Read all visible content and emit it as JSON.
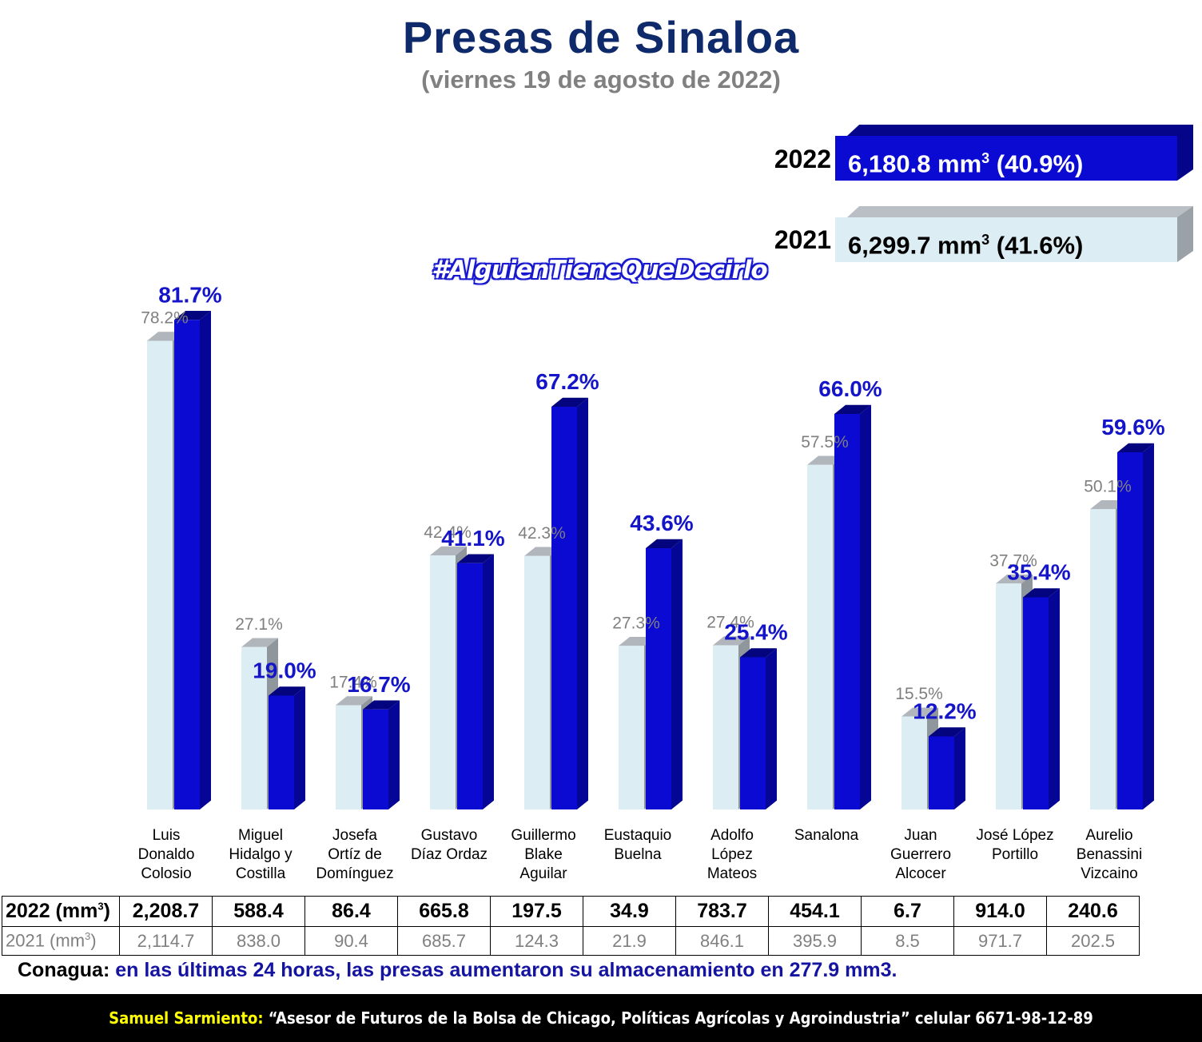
{
  "title": "Presas de Sinaloa",
  "subtitle": "(viernes 19 de agosto de 2022)",
  "hashtag": "#AlguienTieneQueDecirlo",
  "totals": {
    "y2022": {
      "label": "2022",
      "value": "6,180.8 mm",
      "exp": "3",
      "pct": " (40.9%)"
    },
    "y2021": {
      "label": "2021",
      "value": "6,299.7 mm",
      "exp": "3",
      "pct": " (41.6%)"
    }
  },
  "colors": {
    "series_2022": "#0a0ad2",
    "series_2021": "#dcedf4",
    "label_2022": "#1414c8",
    "label_2021": "#7f7f7f"
  },
  "chart_data": {
    "type": "bar",
    "categories": [
      [
        "Luis",
        "Donaldo",
        "Colosio"
      ],
      [
        "Miguel",
        "Hidalgo y",
        "Costilla"
      ],
      [
        "Josefa",
        "Ortíz de",
        "Domínguez"
      ],
      [
        "Gustavo",
        "Díaz Ordaz"
      ],
      [
        "Guillermo",
        "Blake",
        "Aguilar"
      ],
      [
        "Eustaquio",
        "Buelna"
      ],
      [
        "Adolfo",
        "López",
        "Mateos"
      ],
      [
        "Sanalona"
      ],
      [
        "Juan",
        "Guerrero",
        "Alcocer"
      ],
      [
        "José López",
        "Portillo"
      ],
      [
        "Aurelio",
        "Benassini",
        "Vizcaino"
      ]
    ],
    "series": [
      {
        "values": [
          78.2,
          27.1,
          17.4,
          42.4,
          42.3,
          27.3,
          27.4,
          57.5,
          15.5,
          37.7,
          50.1
        ],
        "labels": [
          "78.2%",
          "27.1%",
          "17.4%",
          "42.4%",
          "42.3%",
          "27.3%",
          "27.4%",
          "57.5%",
          "15.5%",
          "37.7%",
          "50.1%"
        ]
      },
      {
        "values": [
          81.7,
          19.0,
          16.7,
          41.1,
          67.2,
          43.6,
          25.4,
          66.0,
          12.2,
          35.4,
          59.6
        ],
        "labels": [
          "81.7%",
          "19.0%",
          "16.7%",
          "41.1%",
          "67.2%",
          "43.6%",
          "25.4%",
          "66.0%",
          "12.2%",
          "35.4%",
          "59.6%"
        ]
      }
    ],
    "ylim": [
      0,
      90
    ]
  },
  "table": {
    "row2022": {
      "label": "2022 (mm",
      "exp": "3",
      "close": ")",
      "values": [
        "2,208.7",
        "588.4",
        "86.4",
        "665.8",
        "197.5",
        "34.9",
        "783.7",
        "454.1",
        "6.7",
        "914.0",
        "240.6"
      ]
    },
    "row2021": {
      "label": "2021 (mm",
      "exp": "3",
      "close": ")",
      "values": [
        "2,114.7",
        "838.0",
        "90.4",
        "685.7",
        "124.3",
        "21.9",
        "846.1",
        "395.9",
        "8.5",
        "971.7",
        "202.5"
      ]
    }
  },
  "note": {
    "source": "Conagua:",
    "text": " en las últimas 24 horas, las presas aumentaron su almacenamiento en 277.9 mm3."
  },
  "footer": {
    "name": "Samuel Sarmiento:",
    "text": " “Asesor de Futuros de la Bolsa de Chicago, Políticas Agrícolas y Agroindustria” celular 6671-98-12-89"
  }
}
